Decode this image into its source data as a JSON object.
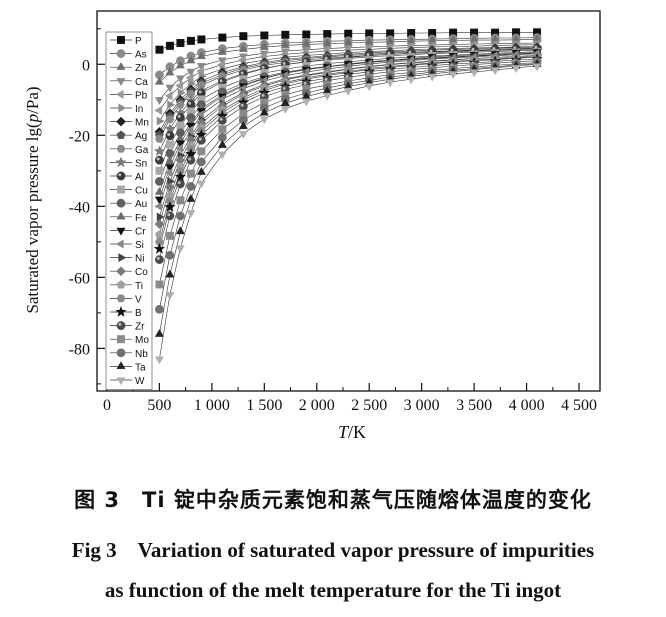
{
  "chart_data": {
    "type": "line",
    "ylabel_prefix": "Saturated vapor pressure lg(",
    "ylabel_italic": "p",
    "ylabel_suffix": "/Pa)",
    "xlabel_italic": "T",
    "xlabel_suffix": "/K",
    "xlim": [
      -95,
      4700
    ],
    "ylim": [
      -92,
      15
    ],
    "xticks": [
      0,
      500,
      1000,
      1500,
      2000,
      2500,
      3000,
      3500,
      4000,
      4500
    ],
    "xtick_labels": [
      "0",
      "500",
      "1 000",
      "1 500",
      "2 000",
      "2 500",
      "3 000",
      "3 500",
      "4 000",
      "4 500"
    ],
    "yticks": [
      0,
      -20,
      -40,
      -60,
      -80
    ],
    "ytick_labels": [
      "0",
      "-20",
      "-40",
      "-60",
      "-80"
    ],
    "grid": false,
    "legend_position": "top-left",
    "x": [
      500,
      600,
      700,
      800,
      900,
      1100,
      1300,
      1500,
      1700,
      1900,
      2100,
      2300,
      2500,
      2700,
      2900,
      3100,
      3300,
      3500,
      3700,
      3900,
      4100
    ],
    "series": [
      {
        "name": "P",
        "marker": "square",
        "color": "#111111",
        "values": [
          4.1,
          5.2,
          6.0,
          6.6,
          7.0,
          7.5,
          7.9,
          8.1,
          8.3,
          8.4,
          8.5,
          8.6,
          8.7,
          8.7,
          8.8,
          8.8,
          8.9,
          8.9,
          8.9,
          9.0,
          9.0
        ]
      },
      {
        "name": "As",
        "marker": "circle",
        "color": "#8a8a8a",
        "values": [
          -3.0,
          -0.7,
          1.0,
          2.3,
          3.3,
          4.4,
          5.1,
          5.6,
          6.0,
          6.2,
          6.5,
          6.6,
          6.8,
          6.9,
          7.0,
          7.1,
          7.2,
          7.3,
          7.4,
          7.4,
          7.5
        ]
      },
      {
        "name": "Zn",
        "marker": "triangle-up",
        "color": "#6e6e6e",
        "values": [
          -5,
          -2.4,
          -0.4,
          1,
          2.2,
          3.4,
          4.2,
          4.8,
          5.3,
          5.6,
          5.8,
          6.0,
          6.2,
          6.3,
          6.5,
          6.6,
          6.7,
          6.8,
          6.8,
          6.9,
          7
        ]
      },
      {
        "name": "Ca",
        "marker": "triangle-down",
        "color": "#8a8a8a",
        "values": [
          -10,
          -6.5,
          -3.9,
          -2,
          -0.4,
          1.2,
          2.3,
          3.1,
          3.7,
          4.1,
          4.4,
          4.7,
          4.9,
          5.1,
          5.3,
          5.4,
          5.6,
          5.7,
          5.8,
          5.9,
          6
        ]
      },
      {
        "name": "Pb",
        "marker": "triangle-left",
        "color": "#9a9a9a",
        "values": [
          -13,
          -8.9,
          -6.0,
          -3.8,
          -1.9,
          -0.1,
          1.2,
          2.2,
          2.8,
          3.3,
          3.7,
          4.0,
          4.2,
          4.5,
          4.7,
          4.9,
          5.0,
          5.1,
          5.3,
          5.4,
          5.5
        ]
      },
      {
        "name": "In",
        "marker": "triangle-right",
        "color": "#8a8a8a",
        "values": [
          -16,
          -11.4,
          -8.0,
          -5.5,
          -3.4,
          -1.3,
          0.2,
          1.2,
          2.0,
          2.5,
          2.9,
          3.3,
          3.6,
          3.8,
          4.1,
          4.3,
          4.4,
          4.6,
          4.7,
          4.9,
          5
        ]
      },
      {
        "name": "Mn",
        "marker": "diamond",
        "color": "#222222",
        "values": [
          -19,
          -13.8,
          -10.0,
          -7.1,
          -4.7,
          -2.3,
          -0.7,
          0.5,
          1.4,
          1.9,
          2.4,
          2.8,
          3.2,
          3.5,
          3.7,
          4.0,
          4.2,
          4.3,
          4.5,
          4.7,
          4.8
        ]
      },
      {
        "name": "Ag",
        "marker": "pentagon",
        "color": "#555555",
        "values": [
          -20,
          -14.6,
          -10.7,
          -7.8,
          -5.3,
          -2.9,
          -1.1,
          0.1,
          1.0,
          1.6,
          2.1,
          2.5,
          2.8,
          3.2,
          3.4,
          3.6,
          3.8,
          4.0,
          4.2,
          4.4,
          4.5
        ]
      },
      {
        "name": "Ga",
        "marker": "hexagon",
        "color": "#8a8a8a",
        "values": [
          -21,
          -15.5,
          -11.4,
          -8.4,
          -5.9,
          -3.4,
          -1.6,
          -0.3,
          0.5,
          1.2,
          1.7,
          2.1,
          2.5,
          2.8,
          3.1,
          3.3,
          3.5,
          3.7,
          3.9,
          4.1,
          4.2
        ]
      },
      {
        "name": "Sn",
        "marker": "star",
        "color": "#7a7a7a",
        "values": [
          -24.5,
          -18.2,
          -13.7,
          -10.3,
          -7.4,
          -4.6,
          -2.6,
          -1.1,
          -0.1,
          0.6,
          1.2,
          1.6,
          2.1,
          2.4,
          2.7,
          3.0,
          3.2,
          3.4,
          3.6,
          3.8,
          4
        ]
      },
      {
        "name": "Al",
        "marker": "sphere",
        "color": "#3a3a3a",
        "values": [
          -27,
          -20.1,
          -15.0,
          -11.3,
          -8.1,
          -5.0,
          -2.8,
          -1.2,
          -0.1,
          0.7,
          1.4,
          1.9,
          2.4,
          2.8,
          3.1,
          3.4,
          3.7,
          3.9,
          4.1,
          4.3,
          4.5
        ]
      },
      {
        "name": "Cu",
        "marker": "square",
        "color": "#a8a8a8",
        "values": [
          -30,
          -22.6,
          -17.3,
          -13.3,
          -9.9,
          -6.6,
          -4.2,
          -2.5,
          -1.4,
          -0.5,
          0.2,
          0.7,
          1.2,
          1.7,
          2.0,
          2.3,
          2.6,
          2.8,
          3.1,
          3.3,
          3.5
        ]
      },
      {
        "name": "Au",
        "marker": "circle",
        "color": "#5e5e5e",
        "values": [
          -33,
          -25.1,
          -19.3,
          -15,
          -11.4,
          -7.8,
          -5.3,
          -3.5,
          -2.2,
          -1.3,
          -0.6,
          0,
          0.6,
          1.0,
          1.4,
          1.7,
          2.0,
          2.3,
          2.5,
          2.8,
          3
        ]
      },
      {
        "name": "Fe",
        "marker": "triangle-up",
        "color": "#6a6a6a",
        "values": [
          -36,
          -27.4,
          -21.1,
          -16.4,
          -12.5,
          -8.6,
          -5.8,
          -3.9,
          -2.5,
          -1.5,
          -0.7,
          -0.1,
          0.5,
          1.0,
          1.4,
          1.8,
          2.1,
          2.4,
          2.7,
          3.0,
          3.2
        ]
      },
      {
        "name": "Cr",
        "marker": "triangle-down",
        "color": "#111111",
        "values": [
          -38,
          -28.9,
          -22.2,
          -17.3,
          -13.1,
          -9.0,
          -6.1,
          -4.0,
          -2.5,
          -1.5,
          -0.7,
          0.1,
          0.7,
          1.2,
          1.6,
          2.1,
          2.4,
          2.7,
          3.0,
          3.3,
          3.5
        ]
      },
      {
        "name": "Si",
        "marker": "triangle-left",
        "color": "#8a8a8a",
        "values": [
          -40,
          -30.5,
          -23.7,
          -18.5,
          -14.2,
          -9.9,
          -6.9,
          -4.7,
          -3.2,
          -2.2,
          -1.3,
          -0.6,
          0.1,
          0.6,
          1.1,
          1.5,
          1.8,
          2.1,
          2.4,
          2.7,
          3
        ]
      },
      {
        "name": "Ni",
        "marker": "triangle-right",
        "color": "#444444",
        "values": [
          -43,
          -33.0,
          -25.7,
          -20.3,
          -15.7,
          -11.2,
          -8.0,
          -5.7,
          -4.1,
          -3.0,
          -2.1,
          -1.3,
          -0.6,
          0,
          0.5,
          0.9,
          1.3,
          1.6,
          1.9,
          2.2,
          2.5
        ]
      },
      {
        "name": "Co",
        "marker": "diamond",
        "color": "#7a7a7a",
        "values": [
          -45,
          -34.6,
          -27.0,
          -21.3,
          -16.5,
          -11.8,
          -8.4,
          -6.1,
          -4.4,
          -3.2,
          -2.3,
          -1.4,
          -0.7,
          -0.1,
          0.4,
          0.8,
          1.2,
          1.6,
          1.9,
          2.2,
          2.5
        ]
      },
      {
        "name": "Ti",
        "marker": "pentagon",
        "color": "#a0a0a0",
        "values": [
          -48,
          -37.0,
          -28.9,
          -22.9,
          -17.9,
          -12.9,
          -9.4,
          -6.8,
          -5.1,
          -3.8,
          -2.8,
          -2.0,
          -1.2,
          -0.6,
          -0.1,
          0.4,
          0.8,
          1.2,
          1.5,
          1.9,
          2.2
        ]
      },
      {
        "name": "V",
        "marker": "hexagon",
        "color": "#8a8a8a",
        "values": [
          -50,
          -38.6,
          -30.2,
          -24,
          -18.8,
          -13.6,
          -10.0,
          -7.4,
          -5.5,
          -4.2,
          -3.2,
          -2.3,
          -1.5,
          -0.9,
          -0.3,
          0.2,
          0.6,
          1.0,
          1.3,
          1.7,
          2
        ]
      },
      {
        "name": "B",
        "marker": "star",
        "color": "#111111",
        "values": [
          -52,
          -40.2,
          -31.7,
          -25.3,
          -19.9,
          -14.6,
          -10.8,
          -8.1,
          -6.3,
          -4.9,
          -3.9,
          -2.9,
          -2.1,
          -1.4,
          -0.9,
          -0.4,
          0.1,
          0.4,
          0.8,
          1.2,
          1.5
        ]
      },
      {
        "name": "Zr",
        "marker": "sphere",
        "color": "#4a4a4a",
        "values": [
          -55,
          -42.7,
          -33.7,
          -27,
          -21.4,
          -15.8,
          -11.9,
          -9.1,
          -7.1,
          -5.7,
          -4.6,
          -3.7,
          -2.8,
          -2.1,
          -1.5,
          -1.0,
          -0.5,
          -0.1,
          0.3,
          0.7,
          1
        ]
      },
      {
        "name": "Mo",
        "marker": "square",
        "color": "#8a8a8a",
        "values": [
          -62,
          -48.3,
          -38.3,
          -30.8,
          -24.5,
          -18.3,
          -13.9,
          -10.8,
          -8.6,
          -7.0,
          -5.8,
          -4.7,
          -3.8,
          -2.9,
          -2.3,
          -1.7,
          -1.2,
          -0.8,
          -0.3,
          0.1,
          0.5
        ]
      },
      {
        "name": "Nb",
        "marker": "circle",
        "color": "#707070",
        "values": [
          -69,
          -53.8,
          -42.7,
          -34.4,
          -27.5,
          -20.6,
          -15.7,
          -12.3,
          -9.8,
          -8.1,
          -6.7,
          -5.5,
          -4.5,
          -3.6,
          -2.9,
          -2.2,
          -1.7,
          -1.2,
          -0.7,
          -0.2,
          0.2
        ]
      },
      {
        "name": "Ta",
        "marker": "triangle-up",
        "color": "#222222",
        "values": [
          -76,
          -59.3,
          -47.1,
          -38,
          -30.4,
          -22.8,
          -17.5,
          -13.7,
          -11.0,
          -9.1,
          -7.6,
          -6.3,
          -5.2,
          -4.2,
          -3.4,
          -2.7,
          -2.1,
          -1.5,
          -1.0,
          -0.5,
          0
        ]
      },
      {
        "name": "W",
        "marker": "triangle-down",
        "color": "#b0b0b0",
        "values": [
          -83,
          -64.9,
          -51.7,
          -41.8,
          -33.5,
          -25.3,
          -19.5,
          -15.4,
          -12.5,
          -10.4,
          -8.8,
          -7.4,
          -6.1,
          -5.0,
          -4.2,
          -3.4,
          -2.7,
          -2.2,
          -1.6,
          -1.0,
          -0.5
        ]
      }
    ]
  },
  "caption": {
    "cn": "图 3　Ti 锭中杂质元素饱和蒸气压随熔体温度的变化",
    "en_line1": "Fig 3　Variation of saturated vapor pressure of impurities",
    "en_line2": "as function of the melt temperature for the Ti ingot"
  }
}
